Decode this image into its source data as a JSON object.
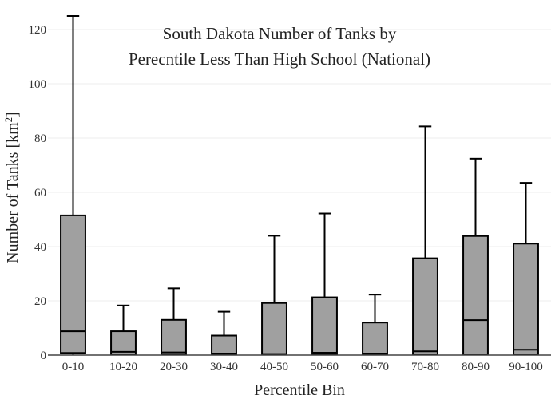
{
  "chart_data": {
    "type": "box",
    "title_line1": "South Dakota Number of Tanks by",
    "title_line2": "Perecntile Less Than High School (National)",
    "xlabel": "Percentile Bin",
    "ylabel": "Number of Tanks  [km",
    "ylabel_sup": "2",
    "ylabel_close": "]",
    "ylim": [
      0,
      125
    ],
    "yticks": [
      0,
      20,
      40,
      60,
      80,
      100,
      120
    ],
    "grid": true,
    "categories": [
      "0-10",
      "10-20",
      "20-30",
      "30-40",
      "40-50",
      "50-60",
      "60-70",
      "70-80",
      "80-90",
      "90-100"
    ],
    "boxes": [
      {
        "q1": 0.8,
        "median": 8.8,
        "q3": 51.5,
        "whisker_low": 0,
        "whisker_high": 125
      },
      {
        "q1": 0.2,
        "median": 1.2,
        "q3": 8.8,
        "whisker_low": 0,
        "whisker_high": 18.3
      },
      {
        "q1": 0.2,
        "median": 1.0,
        "q3": 13.0,
        "whisker_low": 0,
        "whisker_high": 24.6
      },
      {
        "q1": 0.2,
        "median": 0.6,
        "q3": 7.2,
        "whisker_low": 0,
        "whisker_high": 16.0
      },
      {
        "q1": 0.2,
        "median": 0.4,
        "q3": 19.2,
        "whisker_low": 0,
        "whisker_high": 44.0
      },
      {
        "q1": 0.2,
        "median": 0.9,
        "q3": 21.3,
        "whisker_low": 0,
        "whisker_high": 52.2
      },
      {
        "q1": 0.2,
        "median": 0.6,
        "q3": 12.0,
        "whisker_low": 0,
        "whisker_high": 22.3
      },
      {
        "q1": 0.2,
        "median": 1.4,
        "q3": 35.7,
        "whisker_low": 0,
        "whisker_high": 84.3
      },
      {
        "q1": 0.2,
        "median": 12.9,
        "q3": 43.9,
        "whisker_low": 0,
        "whisker_high": 72.4
      },
      {
        "q1": 0.2,
        "median": 2.0,
        "q3": 41.1,
        "whisker_low": 0,
        "whisker_high": 63.5
      }
    ],
    "colors": {
      "box_fill": "#a0a0a0",
      "box_stroke": "#000000",
      "grid": "#eeeeee",
      "axis": "#444444"
    }
  }
}
